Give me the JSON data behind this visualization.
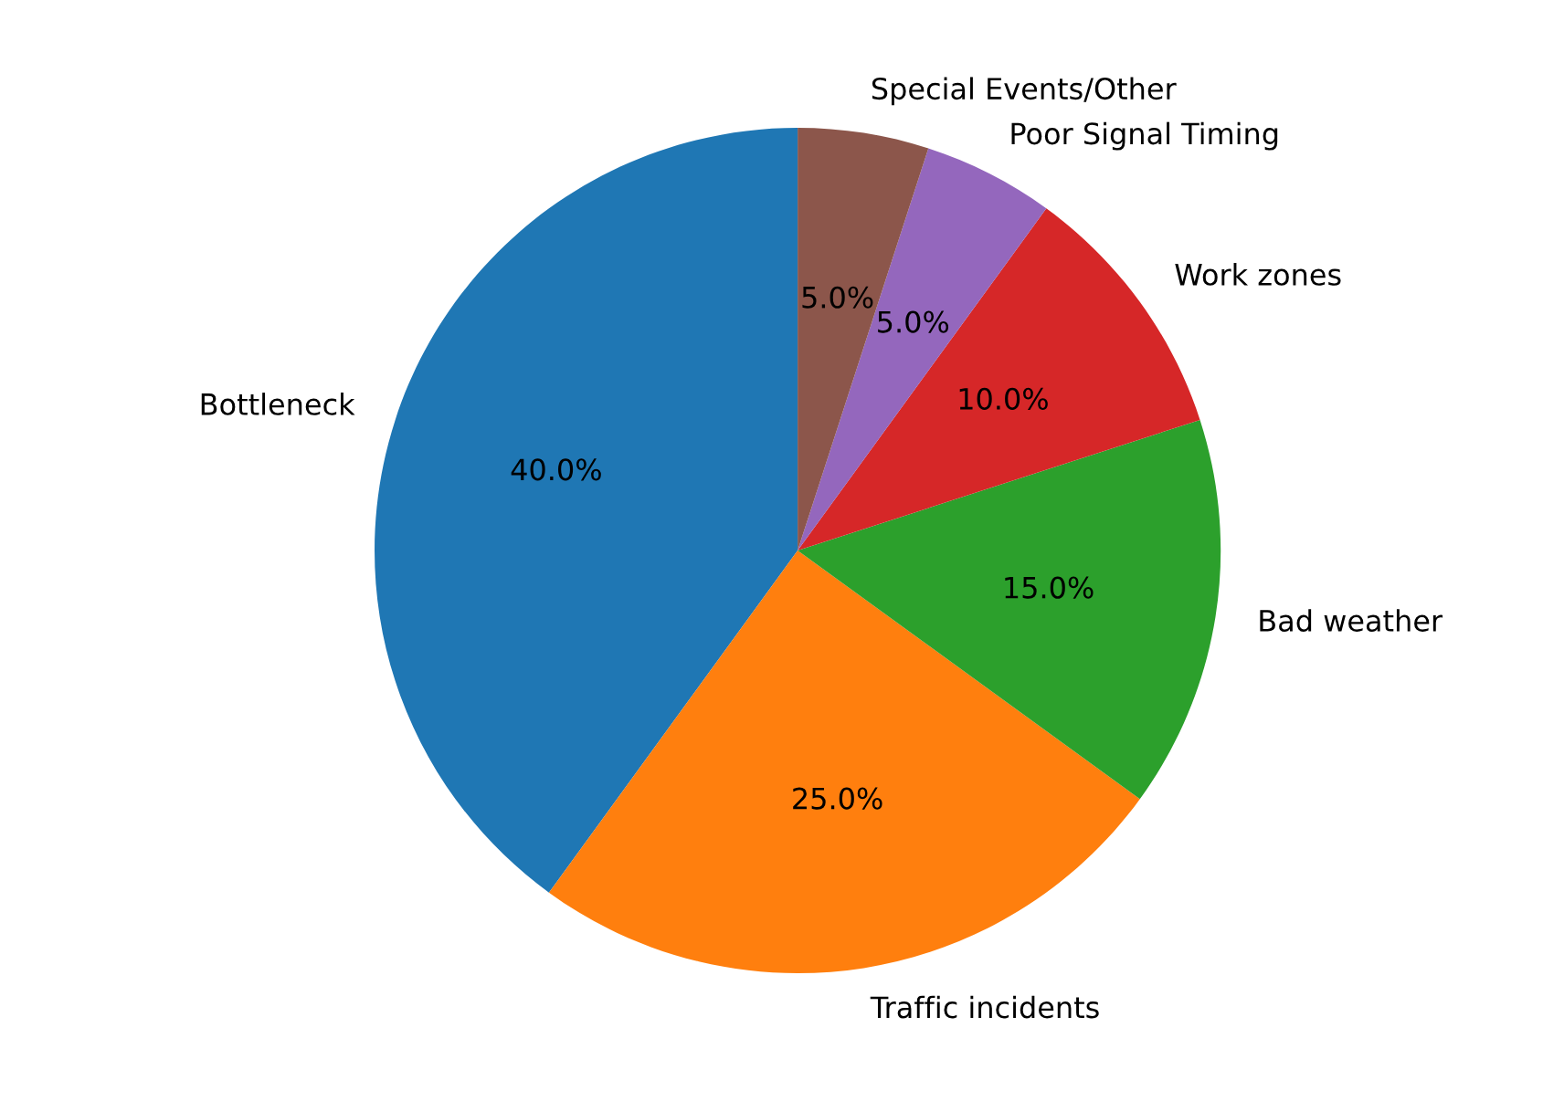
{
  "chart_data": {
    "type": "pie",
    "categories": [
      "Bottleneck",
      "Traffic incidents",
      "Bad weather",
      "Work zones",
      "Poor Signal Timing",
      "Special Events/Other"
    ],
    "values": [
      40,
      25,
      15,
      10,
      5,
      5
    ],
    "colors": [
      "#1f77b4",
      "#ff7f0e",
      "#2ca02c",
      "#d62728",
      "#9467bd",
      "#8c564b"
    ],
    "value_labels": [
      "40.0%",
      "25.0%",
      "15.0%",
      "10.0%",
      "5.0%",
      "5.0%"
    ]
  }
}
